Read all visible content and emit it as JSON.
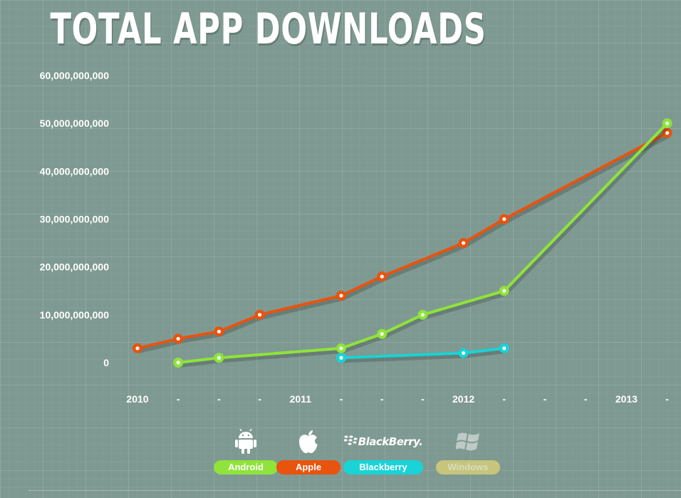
{
  "chart_data": {
    "type": "line",
    "title": "TOTAL APP DOWNLOADS",
    "xlabel": "",
    "ylabel": "",
    "x_tick_labels": [
      "2010",
      "-",
      "-",
      "-",
      "2011",
      "-",
      "-",
      "-",
      "2012",
      "-",
      "-",
      "-",
      "2013",
      "-"
    ],
    "y_ticks": [
      "0",
      "10,000,000,000",
      "20,000,000,000",
      "30,000,000,000",
      "40,000,000,000",
      "50,000,000,000",
      "60,000,000,000"
    ],
    "ylim": [
      0,
      60000000000
    ],
    "x_period_range": [
      0,
      13
    ],
    "grid": true,
    "legend_position": "bottom",
    "series": [
      {
        "name": "Apple",
        "color": "#e8530e",
        "x": [
          0,
          1,
          2,
          3,
          5,
          6,
          8,
          9,
          13
        ],
        "values": [
          3000000000,
          5000000000,
          6500000000,
          10000000000,
          14000000000,
          18000000000,
          25000000000,
          30000000000,
          48000000000
        ]
      },
      {
        "name": "Android",
        "color": "#8fe33b",
        "x": [
          1,
          2,
          5,
          6,
          7,
          9,
          13
        ],
        "values": [
          0,
          1000000000,
          3000000000,
          6000000000,
          10000000000,
          15000000000,
          50000000000
        ]
      },
      {
        "name": "Blackberry",
        "color": "#19d3d6",
        "x": [
          5,
          8,
          9
        ],
        "values": [
          1000000000,
          2000000000,
          3000000000
        ]
      },
      {
        "name": "Windows",
        "color": "#c6c57b",
        "x": [],
        "values": []
      }
    ]
  },
  "legend": {
    "android_label": "Android",
    "apple_label": "Apple",
    "blackberry_label": "Blackberry",
    "windows_label": "Windows",
    "blackberry_logo_text": "BlackBerry.",
    "android_icon": "android-robot-icon",
    "apple_icon": "apple-logo-icon",
    "windows_icon": "windows-flag-icon"
  }
}
